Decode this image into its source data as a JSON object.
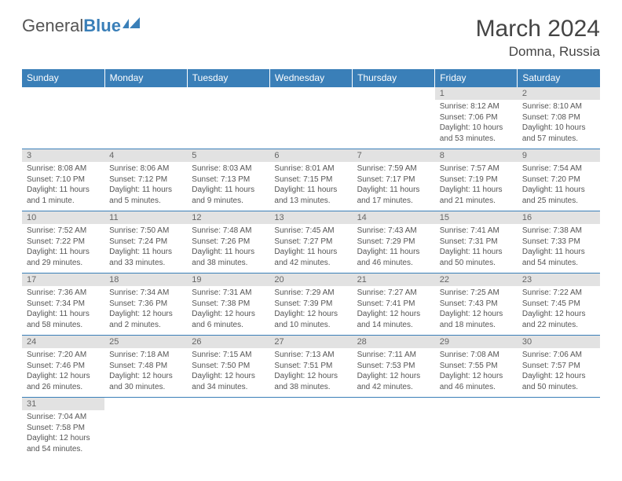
{
  "logo": {
    "text1": "General",
    "text2": "Blue"
  },
  "title": "March 2024",
  "location": "Domna, Russia",
  "colors": {
    "header_bg": "#3a7fb8",
    "header_fg": "#ffffff",
    "daynum_bg": "#e2e2e2",
    "text": "#555555",
    "rule": "#3a7fb8"
  },
  "dayHeaders": [
    "Sunday",
    "Monday",
    "Tuesday",
    "Wednesday",
    "Thursday",
    "Friday",
    "Saturday"
  ],
  "weeks": [
    [
      null,
      null,
      null,
      null,
      null,
      {
        "n": "1",
        "sunrise": "Sunrise: 8:12 AM",
        "sunset": "Sunset: 7:06 PM",
        "daylight": "Daylight: 10 hours and 53 minutes."
      },
      {
        "n": "2",
        "sunrise": "Sunrise: 8:10 AM",
        "sunset": "Sunset: 7:08 PM",
        "daylight": "Daylight: 10 hours and 57 minutes."
      }
    ],
    [
      {
        "n": "3",
        "sunrise": "Sunrise: 8:08 AM",
        "sunset": "Sunset: 7:10 PM",
        "daylight": "Daylight: 11 hours and 1 minute."
      },
      {
        "n": "4",
        "sunrise": "Sunrise: 8:06 AM",
        "sunset": "Sunset: 7:12 PM",
        "daylight": "Daylight: 11 hours and 5 minutes."
      },
      {
        "n": "5",
        "sunrise": "Sunrise: 8:03 AM",
        "sunset": "Sunset: 7:13 PM",
        "daylight": "Daylight: 11 hours and 9 minutes."
      },
      {
        "n": "6",
        "sunrise": "Sunrise: 8:01 AM",
        "sunset": "Sunset: 7:15 PM",
        "daylight": "Daylight: 11 hours and 13 minutes."
      },
      {
        "n": "7",
        "sunrise": "Sunrise: 7:59 AM",
        "sunset": "Sunset: 7:17 PM",
        "daylight": "Daylight: 11 hours and 17 minutes."
      },
      {
        "n": "8",
        "sunrise": "Sunrise: 7:57 AM",
        "sunset": "Sunset: 7:19 PM",
        "daylight": "Daylight: 11 hours and 21 minutes."
      },
      {
        "n": "9",
        "sunrise": "Sunrise: 7:54 AM",
        "sunset": "Sunset: 7:20 PM",
        "daylight": "Daylight: 11 hours and 25 minutes."
      }
    ],
    [
      {
        "n": "10",
        "sunrise": "Sunrise: 7:52 AM",
        "sunset": "Sunset: 7:22 PM",
        "daylight": "Daylight: 11 hours and 29 minutes."
      },
      {
        "n": "11",
        "sunrise": "Sunrise: 7:50 AM",
        "sunset": "Sunset: 7:24 PM",
        "daylight": "Daylight: 11 hours and 33 minutes."
      },
      {
        "n": "12",
        "sunrise": "Sunrise: 7:48 AM",
        "sunset": "Sunset: 7:26 PM",
        "daylight": "Daylight: 11 hours and 38 minutes."
      },
      {
        "n": "13",
        "sunrise": "Sunrise: 7:45 AM",
        "sunset": "Sunset: 7:27 PM",
        "daylight": "Daylight: 11 hours and 42 minutes."
      },
      {
        "n": "14",
        "sunrise": "Sunrise: 7:43 AM",
        "sunset": "Sunset: 7:29 PM",
        "daylight": "Daylight: 11 hours and 46 minutes."
      },
      {
        "n": "15",
        "sunrise": "Sunrise: 7:41 AM",
        "sunset": "Sunset: 7:31 PM",
        "daylight": "Daylight: 11 hours and 50 minutes."
      },
      {
        "n": "16",
        "sunrise": "Sunrise: 7:38 AM",
        "sunset": "Sunset: 7:33 PM",
        "daylight": "Daylight: 11 hours and 54 minutes."
      }
    ],
    [
      {
        "n": "17",
        "sunrise": "Sunrise: 7:36 AM",
        "sunset": "Sunset: 7:34 PM",
        "daylight": "Daylight: 11 hours and 58 minutes."
      },
      {
        "n": "18",
        "sunrise": "Sunrise: 7:34 AM",
        "sunset": "Sunset: 7:36 PM",
        "daylight": "Daylight: 12 hours and 2 minutes."
      },
      {
        "n": "19",
        "sunrise": "Sunrise: 7:31 AM",
        "sunset": "Sunset: 7:38 PM",
        "daylight": "Daylight: 12 hours and 6 minutes."
      },
      {
        "n": "20",
        "sunrise": "Sunrise: 7:29 AM",
        "sunset": "Sunset: 7:39 PM",
        "daylight": "Daylight: 12 hours and 10 minutes."
      },
      {
        "n": "21",
        "sunrise": "Sunrise: 7:27 AM",
        "sunset": "Sunset: 7:41 PM",
        "daylight": "Daylight: 12 hours and 14 minutes."
      },
      {
        "n": "22",
        "sunrise": "Sunrise: 7:25 AM",
        "sunset": "Sunset: 7:43 PM",
        "daylight": "Daylight: 12 hours and 18 minutes."
      },
      {
        "n": "23",
        "sunrise": "Sunrise: 7:22 AM",
        "sunset": "Sunset: 7:45 PM",
        "daylight": "Daylight: 12 hours and 22 minutes."
      }
    ],
    [
      {
        "n": "24",
        "sunrise": "Sunrise: 7:20 AM",
        "sunset": "Sunset: 7:46 PM",
        "daylight": "Daylight: 12 hours and 26 minutes."
      },
      {
        "n": "25",
        "sunrise": "Sunrise: 7:18 AM",
        "sunset": "Sunset: 7:48 PM",
        "daylight": "Daylight: 12 hours and 30 minutes."
      },
      {
        "n": "26",
        "sunrise": "Sunrise: 7:15 AM",
        "sunset": "Sunset: 7:50 PM",
        "daylight": "Daylight: 12 hours and 34 minutes."
      },
      {
        "n": "27",
        "sunrise": "Sunrise: 7:13 AM",
        "sunset": "Sunset: 7:51 PM",
        "daylight": "Daylight: 12 hours and 38 minutes."
      },
      {
        "n": "28",
        "sunrise": "Sunrise: 7:11 AM",
        "sunset": "Sunset: 7:53 PM",
        "daylight": "Daylight: 12 hours and 42 minutes."
      },
      {
        "n": "29",
        "sunrise": "Sunrise: 7:08 AM",
        "sunset": "Sunset: 7:55 PM",
        "daylight": "Daylight: 12 hours and 46 minutes."
      },
      {
        "n": "30",
        "sunrise": "Sunrise: 7:06 AM",
        "sunset": "Sunset: 7:57 PM",
        "daylight": "Daylight: 12 hours and 50 minutes."
      }
    ],
    [
      {
        "n": "31",
        "sunrise": "Sunrise: 7:04 AM",
        "sunset": "Sunset: 7:58 PM",
        "daylight": "Daylight: 12 hours and 54 minutes."
      },
      null,
      null,
      null,
      null,
      null,
      null
    ]
  ]
}
